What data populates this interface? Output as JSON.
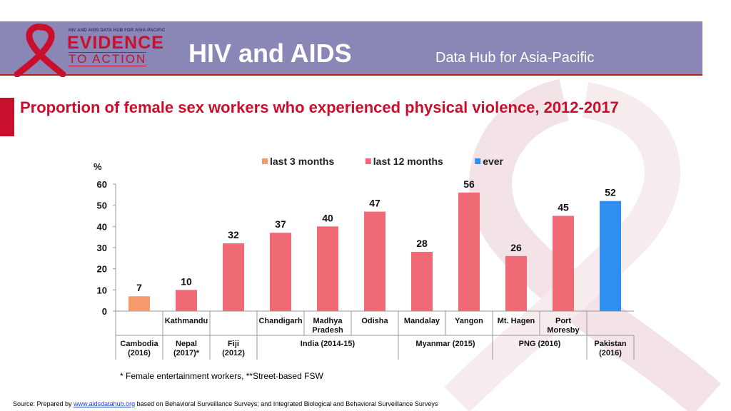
{
  "header": {
    "logo_small_text": "HIV AND AIDS DATA HUB FOR ASIA-PACIFIC",
    "logo_line1": "EVIDENCE",
    "logo_line2": "TO ACTION",
    "title": "HIV and AIDS",
    "subtitle": "Data Hub for Asia-Pacific"
  },
  "slide_title": "Proportion of female sex workers who experienced physical violence, 2012-2017",
  "chart_data": {
    "type": "bar",
    "title": "",
    "ylabel": "%",
    "ylim": [
      0,
      60
    ],
    "yticks": [
      0,
      10,
      20,
      30,
      40,
      50,
      60
    ],
    "grid": false,
    "legend_position": "top",
    "series": [
      {
        "name": "last 3 months",
        "color": "#f79a6b"
      },
      {
        "name": "last 12 months",
        "color": "#ef6a74"
      },
      {
        "name": "ever",
        "color": "#2f8ff0"
      }
    ],
    "bars": [
      {
        "category": "",
        "series": 0,
        "value": 7,
        "label": "7"
      },
      {
        "category": "Kathmandu",
        "series": 1,
        "value": 10,
        "label": "10"
      },
      {
        "category": "",
        "series": 1,
        "value": 32,
        "label": "32"
      },
      {
        "category": "Chandigarh",
        "series": 1,
        "value": 37,
        "label": "37"
      },
      {
        "category": "Madhya Pradesh",
        "series": 1,
        "value": 40,
        "label": "40"
      },
      {
        "category": "Odisha",
        "series": 1,
        "value": 47,
        "label": "47"
      },
      {
        "category": "Mandalay",
        "series": 1,
        "value": 28,
        "label": "28"
      },
      {
        "category": "Yangon",
        "series": 1,
        "value": 56,
        "label": "56"
      },
      {
        "category": "Mt. Hagen",
        "series": 1,
        "value": 26,
        "label": "26"
      },
      {
        "category": "Port Moresby",
        "series": 1,
        "value": 45,
        "label": "45"
      },
      {
        "category": "",
        "series": 2,
        "value": 52,
        "label": "52"
      }
    ],
    "groups": [
      {
        "label": "Cambodia (2016)",
        "start": 0,
        "end": 0
      },
      {
        "label": "Nepal (2017)*",
        "start": 1,
        "end": 1
      },
      {
        "label": "Fiji (2012)",
        "start": 2,
        "end": 2
      },
      {
        "label": "India (2014-15)",
        "start": 3,
        "end": 5
      },
      {
        "label": "Myanmar (2015)",
        "start": 6,
        "end": 7
      },
      {
        "label": "PNG (2016)",
        "start": 8,
        "end": 9
      },
      {
        "label": "Pakistan (2016)",
        "start": 10,
        "end": 10
      }
    ]
  },
  "footnote": "* Female entertainment workers,   **Street-based FSW",
  "source": {
    "prefix": "Source: Prepared by ",
    "link": "www.aidsdatahub.org",
    "suffix": " based on Behavioral Surveillance Surveys; and Integrated Biological and Behavioral Surveillance Surveys"
  }
}
